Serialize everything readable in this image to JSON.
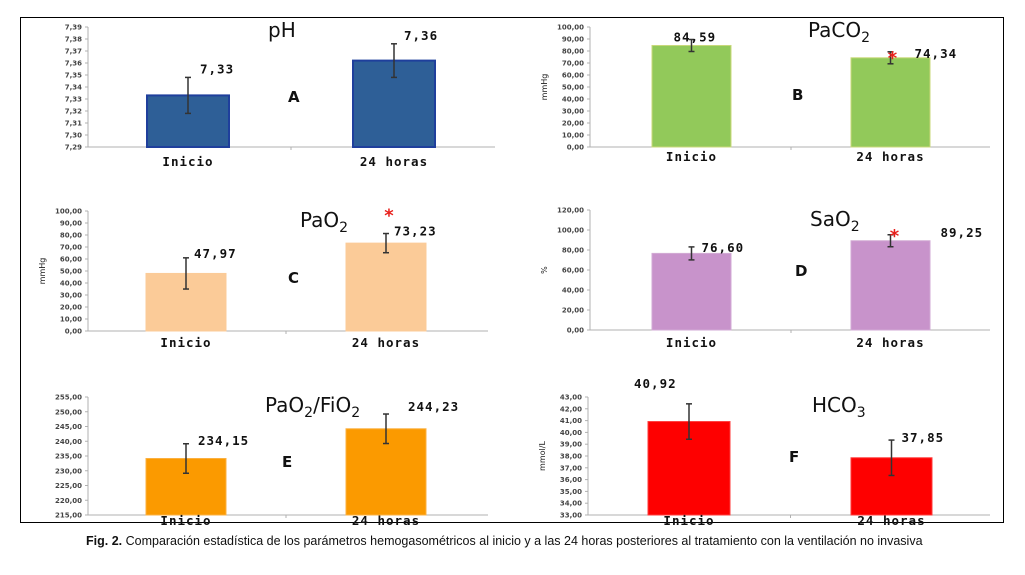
{
  "chart_data": [
    {
      "type": "bar",
      "panel": "A",
      "title": "pH",
      "title_sub": "",
      "title_suffix": "",
      "ylabel": "",
      "categories": [
        "Inicio",
        "24 horas"
      ],
      "values": [
        7.333,
        7.362
      ],
      "error": [
        0.015,
        0.014
      ],
      "value_labels": [
        "7,33",
        "7,36"
      ],
      "significant": [
        false,
        false
      ],
      "ylim": [
        7.29,
        7.39
      ],
      "yticks": [
        7.29,
        7.3,
        7.31,
        7.32,
        7.33,
        7.34,
        7.35,
        7.36,
        7.37,
        7.38,
        7.39
      ],
      "ytick_labels": [
        "7,29",
        "7,30",
        "7,31",
        "7,32",
        "7,33",
        "7,34",
        "7,35",
        "7,36",
        "7,37",
        "7,38",
        "7,39"
      ],
      "color": "#2e5f97",
      "edge": "#1f3f9c"
    },
    {
      "type": "bar",
      "panel": "B",
      "title": "PaCO",
      "title_sub": "2",
      "title_suffix": "",
      "ylabel": "mmHg",
      "categories": [
        "Inicio",
        "24 horas"
      ],
      "values": [
        84.59,
        74.34
      ],
      "error": [
        5.0,
        5.0
      ],
      "value_labels": [
        "84,59",
        "74,34"
      ],
      "significant": [
        false,
        true
      ],
      "ylim": [
        0,
        100
      ],
      "yticks": [
        0,
        10,
        20,
        30,
        40,
        50,
        60,
        70,
        80,
        90,
        100
      ],
      "ytick_labels": [
        "0,00",
        "10,00",
        "20,00",
        "30,00",
        "40,00",
        "50,00",
        "60,00",
        "70,00",
        "80,00",
        "90,00",
        "100,00"
      ],
      "color": "#92c95a",
      "edge": "#c9d87a"
    },
    {
      "type": "bar",
      "panel": "C",
      "title": "PaO",
      "title_sub": "2",
      "title_suffix": "",
      "ylabel": "mmHg",
      "categories": [
        "Inicio",
        "24 horas"
      ],
      "values": [
        47.97,
        73.23
      ],
      "error": [
        13.0,
        8.0
      ],
      "value_labels": [
        "47,97",
        "73,23"
      ],
      "significant": [
        false,
        true
      ],
      "ylim": [
        0,
        100
      ],
      "yticks": [
        0,
        10,
        20,
        30,
        40,
        50,
        60,
        70,
        80,
        90,
        100
      ],
      "ytick_labels": [
        "0,00",
        "10,00",
        "20,00",
        "30,00",
        "40,00",
        "50,00",
        "60,00",
        "70,00",
        "80,00",
        "90,00",
        "100,00"
      ],
      "color": "#fbcb98",
      "edge": "#fbcb98"
    },
    {
      "type": "bar",
      "panel": "D",
      "title": "SaO",
      "title_sub": "2",
      "title_suffix": "",
      "ylabel": "%",
      "categories": [
        "Inicio",
        "24 horas"
      ],
      "values": [
        76.6,
        89.25
      ],
      "error": [
        6.5,
        6.0
      ],
      "value_labels": [
        "76,60",
        "89,25"
      ],
      "significant": [
        false,
        true
      ],
      "ylim": [
        0,
        120
      ],
      "yticks": [
        0,
        20,
        40,
        60,
        80,
        100,
        120
      ],
      "ytick_labels": [
        "0,00",
        "20,00",
        "40,00",
        "60,00",
        "80,00",
        "100,00",
        "120,00"
      ],
      "color": "#c893cb",
      "edge": "#d2aad4"
    },
    {
      "type": "bar",
      "panel": "E",
      "title": "PaO",
      "title_sub": "2",
      "title_suffix": "/FiO₂",
      "ylabel": "",
      "categories": [
        "Inicio",
        "24 horas"
      ],
      "values": [
        234.15,
        244.23
      ],
      "error": [
        5.0,
        5.0
      ],
      "value_labels": [
        "234,15",
        "244,23"
      ],
      "significant": [
        false,
        false
      ],
      "ylim": [
        215,
        255
      ],
      "yticks": [
        215,
        220,
        225,
        230,
        235,
        240,
        245,
        250,
        255
      ],
      "ytick_labels": [
        "215,00",
        "220,00",
        "225,00",
        "230,00",
        "235,00",
        "240,00",
        "245,00",
        "250,00",
        "255,00"
      ],
      "color": "#fb9a00",
      "edge": "#fbb040"
    },
    {
      "type": "bar",
      "panel": "F",
      "title": "HCO",
      "title_sub": "3",
      "title_suffix": "",
      "ylabel": "mmol/L",
      "categories": [
        "Inicio",
        "24 horas"
      ],
      "values": [
        40.92,
        37.85
      ],
      "error": [
        1.5,
        1.5
      ],
      "value_labels": [
        "40,92",
        "37,85"
      ],
      "significant": [
        false,
        false
      ],
      "ylim": [
        33,
        43
      ],
      "yticks": [
        33,
        34,
        35,
        36,
        37,
        38,
        39,
        40,
        41,
        42,
        43
      ],
      "ytick_labels": [
        "33,00",
        "34,00",
        "35,00",
        "36,00",
        "37,00",
        "38,00",
        "39,00",
        "40,00",
        "41,00",
        "42,00",
        "43,00"
      ],
      "color": "#fe0000",
      "edge": "#ff3a3a"
    }
  ],
  "significance_marker": "*",
  "caption": {
    "label": "Fig. 2.",
    "text": " Comparación estadística de los parámetros hemogasométricos al inicio y a las 24 horas posteriores al tratamiento con la ventilación no invasiva"
  }
}
